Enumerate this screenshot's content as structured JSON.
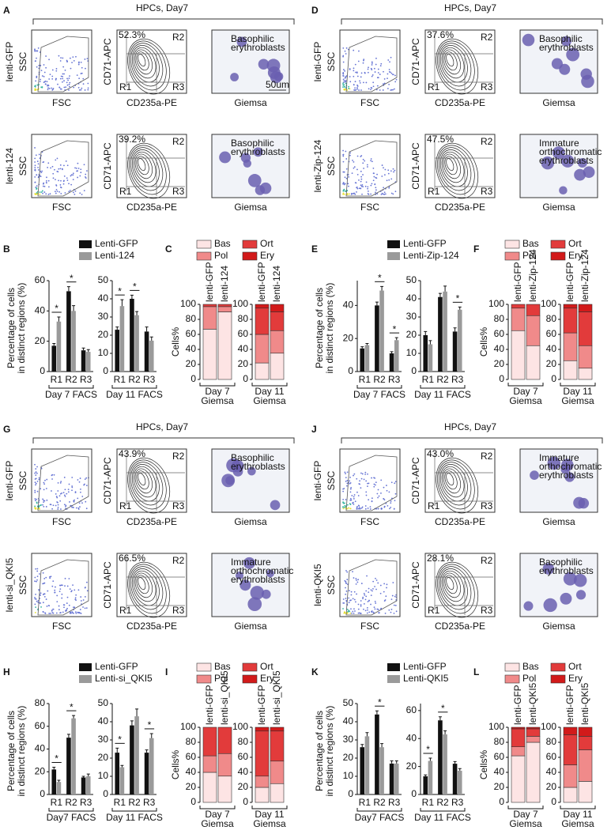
{
  "facs_panels": [
    {
      "label": "A",
      "title": "HPCs, Day7",
      "y_labels": [
        "SSC",
        "CD71-APC"
      ],
      "x_labels": [
        "FSC",
        "CD235a-PE",
        "Giemsa"
      ],
      "regions": [
        "R1",
        "R2",
        "R3"
      ],
      "scale_bar": "50um",
      "rows": [
        {
          "condition": "lenti-GFP",
          "gate_percent": "52.3%",
          "annotation": [
            "Basophilic",
            "erythroblasts"
          ]
        },
        {
          "condition": "lenti-124",
          "gate_percent": "39.2%",
          "annotation": [
            "Basophilic",
            "erythroblasts"
          ]
        }
      ]
    },
    {
      "label": "D",
      "title": "HPCs, Day7",
      "y_labels": [
        "SSC",
        "CD71-APC"
      ],
      "x_labels": [
        "FSC",
        "CD235a-PE",
        "Giemsa"
      ],
      "regions": [
        "R1",
        "R2",
        "R3"
      ],
      "rows": [
        {
          "condition": "lenti-GFP",
          "gate_percent": "37.6%",
          "annotation": [
            "Basophilic",
            "erythroblasts"
          ]
        },
        {
          "condition": "lenti-Zip-124",
          "gate_percent": "47.5%",
          "annotation": [
            "Immature",
            "orthochromatic",
            "erythroblasts"
          ]
        }
      ]
    },
    {
      "label": "G",
      "title": "HPCs, Day7",
      "y_labels": [
        "SSC",
        "CD71-APC"
      ],
      "x_labels": [
        "FSC",
        "CD235a-PE",
        "Giemsa"
      ],
      "regions": [
        "R1",
        "R2",
        "R3"
      ],
      "rows": [
        {
          "condition": "lenti-GFP",
          "gate_percent": "43.9%",
          "annotation": [
            "Basophilic",
            "erythroblasts"
          ]
        },
        {
          "condition": "lenti-si_QKI5",
          "gate_percent": "66.5%",
          "annotation": [
            "Immature",
            "orthochromatic",
            "erythroblasts"
          ]
        }
      ]
    },
    {
      "label": "J",
      "title": "HPCs, Day7",
      "y_labels": [
        "SSC",
        "CD71-APC"
      ],
      "x_labels": [
        "FSC",
        "CD235a-PE",
        "Giemsa"
      ],
      "regions": [
        "R1",
        "R2",
        "R3"
      ],
      "rows": [
        {
          "condition": "lenti-GFP",
          "gate_percent": "43.0%",
          "annotation": [
            "Immature",
            "orthochromatic",
            "erythroblasts"
          ]
        },
        {
          "condition": "lenti-QKI5",
          "gate_percent": "28.1%",
          "annotation": [
            "Basophilic",
            "erythroblasts"
          ]
        }
      ]
    }
  ],
  "chart_data": [
    {
      "type": "bar",
      "label": "B",
      "legend": [
        {
          "name": "Lenti-GFP",
          "color": "#111111"
        },
        {
          "name": "Lenti-124",
          "color": "#9a9a9a"
        }
      ],
      "ylabel": [
        "Percentage of cells",
        "in distinct regions (%)"
      ],
      "panels": [
        {
          "xlabel": "Day 7 FACS",
          "categories": [
            "R1",
            "R2",
            "R3"
          ],
          "ylim": [
            0,
            60
          ],
          "yticks": [
            0,
            20,
            40,
            60
          ],
          "values": [
            [
              17,
              53,
              14
            ],
            [
              33,
              40,
              13
            ]
          ],
          "errors": [
            [
              1.5,
              3,
              1.5
            ],
            [
              3,
              3.5,
              1.5
            ]
          ],
          "significance": [
            "*",
            "*",
            null
          ]
        },
        {
          "xlabel": "Day 11 FACS",
          "categories": [
            "R1",
            "R2",
            "R3"
          ],
          "ylim": [
            0,
            50
          ],
          "yticks": [
            0,
            10,
            20,
            30,
            40,
            50
          ],
          "values": [
            [
              23,
              40,
              22
            ],
            [
              36,
              31,
              17
            ]
          ],
          "errors": [
            [
              1.5,
              2,
              2.5
            ],
            [
              3.5,
              2,
              2
            ]
          ],
          "significance": [
            "*",
            "*",
            null
          ]
        }
      ]
    },
    {
      "type": "stacked_bar",
      "label": "C",
      "legend": [
        {
          "name": "Bas",
          "color": "#fde4e4"
        },
        {
          "name": "Pol",
          "color": "#f08a8a"
        },
        {
          "name": "Ort",
          "color": "#e23b3b"
        },
        {
          "name": "Ery",
          "color": "#d21a1a"
        }
      ],
      "ylabel": "Cells%",
      "panels": [
        {
          "xlabel": [
            "Day 7",
            "Giemsa"
          ],
          "categories": [
            "lenti-GFP",
            "lenti-124"
          ],
          "ylim": [
            0,
            100
          ],
          "yticks": [
            0,
            20,
            40,
            60,
            80,
            100
          ],
          "values": [
            [
              67,
              30,
              3,
              0
            ],
            [
              90,
              7,
              3,
              0
            ]
          ]
        },
        {
          "xlabel": [
            "Day 11",
            "Giemsa"
          ],
          "categories": [
            "lenti-GFP",
            "lenti-124"
          ],
          "ylim": [
            0,
            100
          ],
          "yticks": [
            0,
            20,
            40,
            60,
            80,
            100
          ],
          "values": [
            [
              22,
              38,
              35,
              5
            ],
            [
              35,
              30,
              25,
              10
            ]
          ]
        }
      ]
    },
    {
      "type": "bar",
      "label": "E",
      "legend": [
        {
          "name": "Lenti-GFP",
          "color": "#111111"
        },
        {
          "name": "Lenti-Zip-124",
          "color": "#9a9a9a"
        }
      ],
      "ylabel": [
        "Percentage of cells",
        "in distinct regions (%)"
      ],
      "panels": [
        {
          "xlabel": "Day 7 FACS",
          "categories": [
            "R1",
            "R2",
            "R3"
          ],
          "ylim": [
            0,
            55
          ],
          "yticks": [
            0,
            20,
            40
          ],
          "values": [
            [
              14,
              40,
              11
            ],
            [
              16,
              49,
              19
            ]
          ],
          "errors": [
            [
              1,
              2,
              1
            ],
            [
              1,
              2.5,
              1.5
            ]
          ],
          "significance": [
            null,
            "*",
            "*"
          ]
        },
        {
          "xlabel": "Day 11 FACS",
          "categories": [
            "R1",
            "R2",
            "R3"
          ],
          "ylim": [
            0,
            50
          ],
          "yticks": [
            0,
            10,
            20,
            30,
            40,
            50
          ],
          "values": [
            [
              20,
              41,
              22
            ],
            [
              15,
              44,
              34
            ]
          ],
          "errors": [
            [
              2,
              2,
              2
            ],
            [
              2,
              3,
              1.5
            ]
          ],
          "significance": [
            null,
            null,
            "*"
          ]
        }
      ]
    },
    {
      "type": "stacked_bar",
      "label": "F",
      "legend": [
        {
          "name": "Bas",
          "color": "#fde4e4"
        },
        {
          "name": "Pol",
          "color": "#f08a8a"
        },
        {
          "name": "Ort",
          "color": "#e23b3b"
        },
        {
          "name": "Ery",
          "color": "#d21a1a"
        }
      ],
      "ylabel": "Cells%",
      "panels": [
        {
          "xlabel": [
            "Day 7",
            "Giemsa"
          ],
          "categories": [
            "lenti-GFP",
            "lenti-Zip-124"
          ],
          "ylim": [
            0,
            100
          ],
          "yticks": [
            0,
            20,
            40,
            60,
            80,
            100
          ],
          "values": [
            [
              65,
              30,
              5,
              0
            ],
            [
              45,
              40,
              15,
              0
            ]
          ]
        },
        {
          "xlabel": [
            "Day 11",
            "Giemsa"
          ],
          "categories": [
            "lenti-GFP",
            "lenti-Zip-124"
          ],
          "ylim": [
            0,
            100
          ],
          "yticks": [
            0,
            20,
            40,
            60,
            80,
            100
          ],
          "values": [
            [
              25,
              37,
              33,
              5
            ],
            [
              15,
              30,
              45,
              10
            ]
          ]
        }
      ]
    },
    {
      "type": "bar",
      "label": "H",
      "legend": [
        {
          "name": "Lenti-GFP",
          "color": "#111111"
        },
        {
          "name": "Lenti-si_QKI5",
          "color": "#9a9a9a"
        }
      ],
      "ylabel": [
        "Percentage of cells",
        "in distinct regions (%)"
      ],
      "panels": [
        {
          "xlabel": "Day7 FACS",
          "categories": [
            "R1",
            "R2",
            "R3"
          ],
          "ylim": [
            0,
            80
          ],
          "yticks": [
            0,
            20,
            40,
            60,
            80
          ],
          "values": [
            [
              22,
              50,
              15
            ],
            [
              11,
              67,
              16
            ]
          ],
          "errors": [
            [
              2,
              3,
              1
            ],
            [
              1.5,
              2.5,
              2
            ]
          ],
          "significance": [
            "*",
            "*",
            null
          ]
        },
        {
          "xlabel": "Day 11 FACS",
          "categories": [
            "R1",
            "R2",
            "R3"
          ],
          "ylim": [
            0,
            50
          ],
          "yticks": [
            0,
            10,
            20,
            30,
            40,
            50
          ],
          "values": [
            [
              23,
              38,
              23
            ],
            [
              15,
              43,
              31
            ]
          ],
          "errors": [
            [
              2.5,
              2.5,
              1.5
            ],
            [
              1,
              4,
              2.5
            ]
          ],
          "significance": [
            "*",
            null,
            "*"
          ]
        }
      ]
    },
    {
      "type": "stacked_bar",
      "label": "I",
      "legend": [
        {
          "name": "Bas",
          "color": "#fde4e4"
        },
        {
          "name": "Pol",
          "color": "#f08a8a"
        },
        {
          "name": "Ort",
          "color": "#e23b3b"
        },
        {
          "name": "Ery",
          "color": "#d21a1a"
        }
      ],
      "ylabel": "Cells%",
      "panels": [
        {
          "xlabel": [
            "Day 7",
            "Giemsa"
          ],
          "categories": [
            "lenti-GFP",
            "lenti-si_QKI5"
          ],
          "ylim": [
            0,
            100
          ],
          "yticks": [
            0,
            20,
            40,
            60,
            80,
            100
          ],
          "values": [
            [
              40,
              22,
              38,
              0
            ],
            [
              35,
              30,
              35,
              0
            ]
          ]
        },
        {
          "xlabel": [
            "Day 11",
            "Giemsa"
          ],
          "categories": [
            "lenti-GFP",
            "lenti-si_QKI5"
          ],
          "ylim": [
            0,
            100
          ],
          "yticks": [
            0,
            20,
            40,
            60,
            80,
            100
          ],
          "values": [
            [
              20,
              15,
              60,
              5
            ],
            [
              25,
              30,
              40,
              5
            ]
          ]
        }
      ]
    },
    {
      "type": "bar",
      "label": "K",
      "legend": [
        {
          "name": "Lenti-GFP",
          "color": "#111111"
        },
        {
          "name": "Lenti-QKI5",
          "color": "#9a9a9a"
        }
      ],
      "ylabel": [
        "Percentage of cells",
        "in distinct regions (%)"
      ],
      "panels": [
        {
          "xlabel": "Day7 FACS",
          "categories": [
            "R1",
            "R2",
            "R3"
          ],
          "ylim": [
            0,
            50
          ],
          "yticks": [
            0,
            10,
            20,
            30,
            40,
            50
          ],
          "values": [
            [
              26,
              44,
              17
            ],
            [
              32,
              26,
              17
            ]
          ],
          "errors": [
            [
              1.5,
              2,
              1.5
            ],
            [
              2,
              2,
              1.5
            ]
          ],
          "significance": [
            null,
            "*",
            null
          ]
        },
        {
          "xlabel": "Day 11 FACS",
          "categories": [
            "R1",
            "R2",
            "R3"
          ],
          "ylim": [
            0,
            65
          ],
          "yticks": [
            0,
            20,
            40,
            60
          ],
          "values": [
            [
              13,
              53,
              22
            ],
            [
              24,
              43,
              17
            ]
          ],
          "errors": [
            [
              1,
              2.5,
              1.5
            ],
            [
              2,
              2.5,
              1.5
            ]
          ],
          "significance": [
            "*",
            "*",
            null
          ]
        }
      ]
    },
    {
      "type": "stacked_bar",
      "label": "L",
      "legend": [
        {
          "name": "Bas",
          "color": "#fde4e4"
        },
        {
          "name": "Pol",
          "color": "#f08a8a"
        },
        {
          "name": "Ort",
          "color": "#e23b3b"
        },
        {
          "name": "Ery",
          "color": "#d21a1a"
        }
      ],
      "ylabel": "Cells%",
      "panels": [
        {
          "xlabel": [
            "Day 7",
            "Giemsa"
          ],
          "categories": [
            "lenti-GFP",
            "lenti-QKI5"
          ],
          "ylim": [
            0,
            100
          ],
          "yticks": [
            0,
            20,
            40,
            60,
            80,
            100
          ],
          "values": [
            [
              62,
              12,
              24,
              2
            ],
            [
              80,
              8,
              10,
              2
            ]
          ]
        },
        {
          "xlabel": [
            "Day 11",
            "Giemsa"
          ],
          "categories": [
            "lenti-GFP",
            "lenti-QKI5"
          ],
          "ylim": [
            0,
            100
          ],
          "yticks": [
            0,
            20,
            40,
            60,
            80,
            100
          ],
          "values": [
            [
              20,
              30,
              40,
              10
            ],
            [
              28,
              42,
              18,
              12
            ]
          ]
        }
      ]
    }
  ]
}
